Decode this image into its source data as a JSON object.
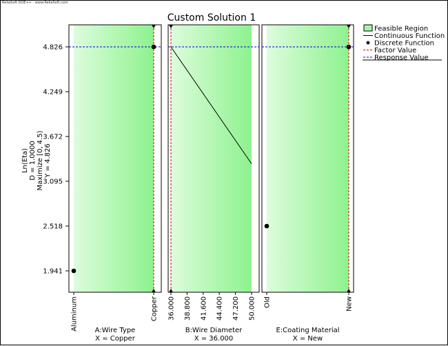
{
  "watermark": "ReliaSoft DOE++ - www.ReliaSoft.com",
  "chart_data": {
    "type": "line",
    "title": "Custom Solution 1",
    "ylabel_lines": [
      "Ln(Eta)",
      "D = 1.0000",
      "Maximize [0, 4.5)",
      "Y = 4.826"
    ],
    "y_ticks": [
      "4.826",
      "4.249",
      "3.672",
      "3.095",
      "2.518",
      "1.941"
    ],
    "ylim": [
      1.941,
      4.826
    ],
    "response_value": 4.826,
    "legend": {
      "placement": "top-right",
      "items": [
        {
          "label": "Feasible Region",
          "kind": "swatch",
          "color": "#a6f5a6"
        },
        {
          "label": "Continuous Function",
          "kind": "line",
          "color": "#000000"
        },
        {
          "label": "Discrete Function",
          "kind": "dot",
          "color": "#000000"
        },
        {
          "label": "Factor Value",
          "kind": "dash",
          "color": "#cc0000"
        },
        {
          "label": "Response Value",
          "kind": "dash",
          "color": "#0000cc"
        }
      ]
    },
    "colors": {
      "feasible_light": "#ddfcdd",
      "feasible_dark": "#8ef28e",
      "factor_line": "#cc0000",
      "response_line": "#0000cc"
    },
    "factors": [
      {
        "name": "A:Wire Type",
        "setting": "X = Copper",
        "kind": "discrete",
        "levels": [
          "Aluminum",
          "Copper"
        ],
        "values": [
          1.941,
          4.826
        ],
        "selected": "Copper"
      },
      {
        "name": "B:Wire Diameter",
        "setting": "X = 36.000",
        "kind": "continuous",
        "x_ticks": [
          "36.000",
          "38.800",
          "41.600",
          "44.400",
          "47.200",
          "50.000"
        ],
        "xlim": [
          36,
          50
        ],
        "x": [
          36,
          50
        ],
        "y": [
          4.826,
          3.32
        ],
        "selected": 36
      },
      {
        "name": "E:Coating Material",
        "setting": "X = New",
        "kind": "discrete",
        "levels": [
          "Old",
          "New"
        ],
        "values": [
          2.518,
          4.826
        ],
        "selected": "New"
      }
    ]
  }
}
